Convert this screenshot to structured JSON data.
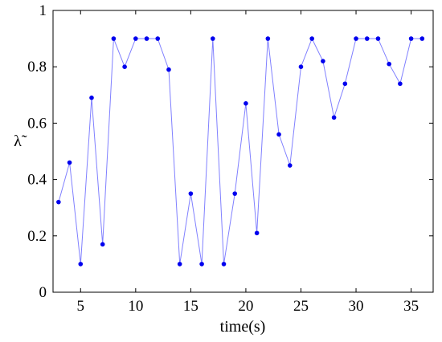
{
  "chart_data": {
    "type": "line",
    "xlabel": "time(s)",
    "ylabel": "λ̃",
    "xlim": [
      2.5,
      37
    ],
    "ylim": [
      0,
      1
    ],
    "xticks": [
      5,
      10,
      15,
      20,
      25,
      30,
      35
    ],
    "yticks": [
      0,
      0.2,
      0.4,
      0.6,
      0.8,
      1
    ],
    "xtick_labels": [
      "5",
      "10",
      "15",
      "20",
      "25",
      "30",
      "35"
    ],
    "ytick_labels": [
      "0",
      "0.2",
      "0.4",
      "0.6",
      "0.8",
      "1"
    ],
    "grid": false,
    "colors": {
      "line": "#8080ff",
      "marker": "#0000ee"
    },
    "series": [
      {
        "x": [
          3,
          4,
          5,
          6,
          7,
          8,
          9,
          10,
          11,
          12,
          13,
          14,
          15,
          16,
          17,
          18,
          19,
          20,
          21,
          22,
          23,
          24,
          25,
          26,
          27,
          28,
          29,
          30,
          31,
          32,
          33,
          34,
          35,
          36
        ],
        "values": [
          0.32,
          0.46,
          0.1,
          0.69,
          0.17,
          0.9,
          0.8,
          0.9,
          0.9,
          0.9,
          0.79,
          0.1,
          0.35,
          0.1,
          0.9,
          0.1,
          0.35,
          0.67,
          0.21,
          0.9,
          0.56,
          0.45,
          0.8,
          0.9,
          0.82,
          0.62,
          0.74,
          0.9,
          0.9,
          0.9,
          0.81,
          0.74,
          0.9,
          0.9
        ]
      }
    ]
  }
}
